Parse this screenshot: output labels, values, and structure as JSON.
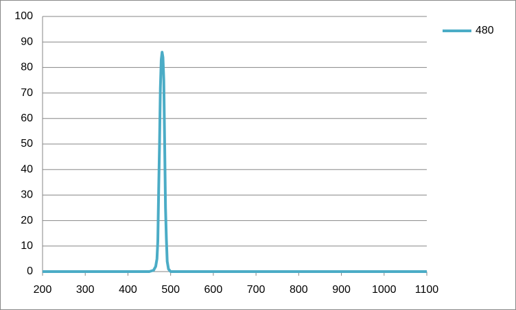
{
  "chart_data": {
    "type": "line",
    "x": [
      200,
      450,
      460,
      465,
      468,
      470,
      472,
      474,
      476,
      478,
      480,
      482,
      484,
      486,
      488,
      490,
      492,
      495,
      500,
      1100
    ],
    "series": [
      {
        "name": "480",
        "color": "#4bacc6",
        "values": [
          0,
          0,
          0.5,
          2,
          5,
          12,
          32,
          50,
          72,
          83,
          86,
          84,
          75,
          50,
          25,
          13,
          4,
          1,
          0,
          0
        ]
      }
    ],
    "xlim": [
      200,
      1100
    ],
    "xticks": [
      200,
      300,
      400,
      500,
      600,
      700,
      800,
      900,
      1000,
      1100
    ],
    "ylim": [
      0,
      100
    ],
    "yticks": [
      0,
      10,
      20,
      30,
      40,
      50,
      60,
      70,
      80,
      90,
      100
    ],
    "grid": true,
    "legend": "right"
  }
}
